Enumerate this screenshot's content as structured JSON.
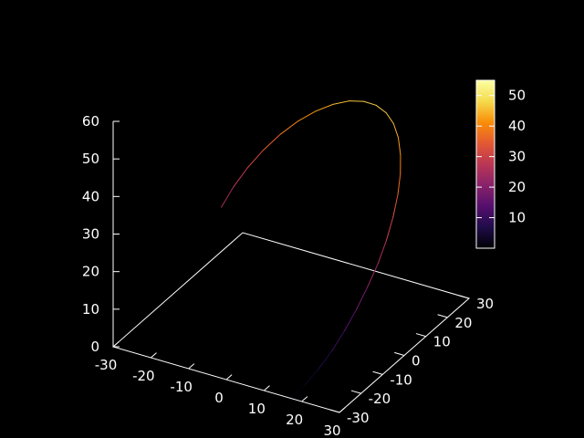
{
  "chart_data": {
    "type": "line",
    "style": "3d-surface-curve",
    "title": "",
    "xlabel": "",
    "ylabel": "",
    "zlabel": "",
    "background": "#000000",
    "axis_color": "#ffffff",
    "x_ticks": [
      "-30",
      "-20",
      "-10",
      "0",
      "10",
      "20",
      "30"
    ],
    "y_ticks": [
      "-30",
      "-20",
      "-10",
      "0",
      "10",
      "20",
      "30"
    ],
    "z_ticks": [
      "0",
      "10",
      "20",
      "30",
      "40",
      "50",
      "60"
    ],
    "xlim": [
      -30,
      30
    ],
    "ylim": [
      -30,
      30
    ],
    "zlim": [
      0,
      60
    ],
    "colorbar": {
      "ticks": [
        "10",
        "20",
        "30",
        "40",
        "50"
      ],
      "range": [
        0,
        55
      ],
      "palette": [
        "#000004",
        "#1f0c48",
        "#550f6d",
        "#88226a",
        "#ba3655",
        "#e35933",
        "#f98e09",
        "#f5db4c",
        "#fcffa4"
      ]
    },
    "series": [
      {
        "points": [
          {
            "x": 17.0,
            "y": -29.3,
            "z": 0.0
          },
          {
            "x": 18.8,
            "y": -26.2,
            "z": 2.3
          },
          {
            "x": 20.4,
            "y": -22.9,
            "z": 5.2
          },
          {
            "x": 21.8,
            "y": -19.2,
            "z": 8.5
          },
          {
            "x": 22.9,
            "y": -15.3,
            "z": 12.2
          },
          {
            "x": 23.7,
            "y": -11.2,
            "z": 16.0
          },
          {
            "x": 24.2,
            "y": -6.9,
            "z": 20.0
          },
          {
            "x": 24.4,
            "y": -2.4,
            "z": 24.0
          },
          {
            "x": 24.2,
            "y": 1.9,
            "z": 28.0
          },
          {
            "x": 23.5,
            "y": 6.2,
            "z": 31.8
          },
          {
            "x": 22.4,
            "y": 10.3,
            "z": 35.4
          },
          {
            "x": 20.9,
            "y": 14.1,
            "z": 38.6
          },
          {
            "x": 19.0,
            "y": 17.5,
            "z": 41.4
          },
          {
            "x": 16.7,
            "y": 20.5,
            "z": 43.7
          },
          {
            "x": 14.0,
            "y": 23.0,
            "z": 45.4
          },
          {
            "x": 11.0,
            "y": 24.8,
            "z": 46.5
          },
          {
            "x": 7.7,
            "y": 25.9,
            "z": 47.0
          },
          {
            "x": 4.2,
            "y": 26.3,
            "z": 46.8
          },
          {
            "x": 0.5,
            "y": 26.0,
            "z": 46.0
          },
          {
            "x": -3.2,
            "y": 25.0,
            "z": 44.5
          },
          {
            "x": -6.8,
            "y": 23.3,
            "z": 42.5
          },
          {
            "x": -10.2,
            "y": 21.0,
            "z": 40.0
          },
          {
            "x": -13.3,
            "y": 18.2,
            "z": 37.0
          },
          {
            "x": -16.0,
            "y": 15.0,
            "z": 33.6
          },
          {
            "x": -18.2,
            "y": 11.5,
            "z": 30.0
          },
          {
            "x": -19.8,
            "y": 7.8,
            "z": 26.3
          },
          {
            "x": -20.8,
            "y": 4.0,
            "z": 22.6
          }
        ]
      }
    ]
  }
}
